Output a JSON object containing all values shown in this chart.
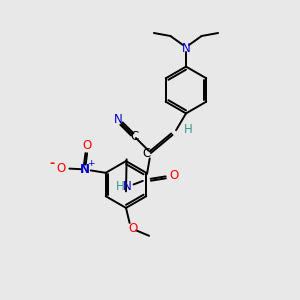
{
  "background_color": "#e8e8e8",
  "bond_color": "#000000",
  "atom_colors": {
    "N": "#0000cc",
    "O": "#ff0000",
    "C": "#000000",
    "H": "#3a9a8a"
  },
  "figsize": [
    3.0,
    3.0
  ],
  "dpi": 100
}
